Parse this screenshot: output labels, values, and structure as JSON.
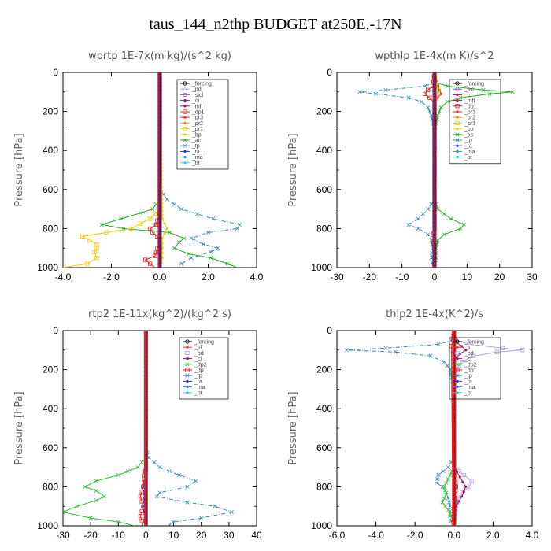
{
  "title": "taus_144_n2thp  BUDGET at250E,-17N",
  "colors": {
    "_forcing": "#000000",
    "_pd": "#b0a0e0",
    "_sicl": "#9a4fd0",
    "_cl": "#a0146e",
    "_mfl": "#b01060",
    "_dp1": "#e02020",
    "_pr3": "#ff2020",
    "_pr2": "#ff8c1a",
    "_pr1": "#f0c800",
    "_bp": "#c8e020",
    "_ac": "#20b020",
    "_tp": "#3388aa",
    "_ta": "#2030e0",
    "_ma": "#3090e0",
    "_bt": "#20d0e0",
    "_sf": "#ff3030",
    "_dp2": "#30c030"
  },
  "chart_data": [
    {
      "type": "line",
      "title": "wprtp  1E-7x(m kg)/(s^2 kg)",
      "ylabel": "Pressure [hPa]",
      "xlim": [
        -4.0,
        4.0
      ],
      "ylim": [
        0,
        1000
      ],
      "xticks": [
        "-4.0",
        "-2.0",
        "0.0",
        "2.0",
        "4.0"
      ],
      "xtick_values": [
        -4,
        -2,
        0,
        2,
        4
      ],
      "yticks": [
        "0",
        "200",
        "400",
        "600",
        "800",
        "1000"
      ],
      "legend": [
        "_forcing",
        "_pd",
        "_sicl",
        "_cl",
        "_mfl",
        "_dp1",
        "_pr3",
        "_pr2",
        "_pr1",
        "_bp",
        "_ac",
        "_tp",
        "_ta",
        "_ma",
        "_bt"
      ],
      "series": [
        {
          "name": "_tp",
          "p": [
            0,
            600,
            650,
            700,
            750,
            780,
            800,
            820,
            850,
            880,
            900,
            920,
            950,
            980,
            1000
          ],
          "x": [
            0,
            0,
            0.3,
            0.9,
            2.2,
            3.3,
            3.2,
            2.0,
            1.3,
            1.8,
            2.4,
            2.1,
            1.3,
            0.9,
            1.0
          ]
        },
        {
          "name": "_ac",
          "p": [
            0,
            650,
            700,
            720,
            750,
            780,
            800,
            820,
            850,
            870,
            900,
            930,
            950,
            980,
            1000
          ],
          "x": [
            0,
            0,
            -0.3,
            -0.8,
            -1.6,
            -2.4,
            -1.5,
            0.4,
            1.0,
            0.8,
            0.6,
            1.2,
            2.1,
            2.8,
            3.2
          ]
        },
        {
          "name": "_pr1",
          "p": [
            0,
            700,
            750,
            800,
            820,
            840,
            860,
            880,
            900,
            920,
            950,
            980,
            1000
          ],
          "x": [
            0,
            0,
            -0.4,
            -1.2,
            -2.2,
            -3.2,
            -2.9,
            -2.6,
            -2.6,
            -2.7,
            -2.6,
            -3.0,
            -4.0
          ]
        },
        {
          "name": "_dp1",
          "p": [
            0,
            700,
            740,
            780,
            800,
            820,
            840,
            860,
            880,
            900,
            940,
            960,
            980,
            1000
          ],
          "x": [
            0,
            0,
            -0.05,
            -0.15,
            -0.4,
            -0.3,
            -0.1,
            0,
            0,
            -0.1,
            -0.2,
            -0.6,
            -0.4,
            -0.2
          ]
        },
        {
          "name": "_bp",
          "p": [
            0,
            750,
            800,
            850,
            900,
            950,
            1000
          ],
          "x": [
            0,
            0.1,
            0.3,
            0.1,
            0.1,
            0.1,
            0.05
          ]
        },
        {
          "name": "_forcing",
          "p": [
            0,
            250,
            500,
            750,
            1000
          ],
          "x": [
            0,
            0,
            0,
            0,
            0
          ]
        }
      ]
    },
    {
      "type": "line",
      "title": "wpthlp  1E-4x(m K)/s^2",
      "ylabel": "Pressure [hPa]",
      "xlim": [
        -30,
        30
      ],
      "ylim": [
        0,
        1000
      ],
      "xticks": [
        "-30",
        "-20",
        "-10",
        "0",
        "10",
        "20",
        "30"
      ],
      "xtick_values": [
        -30,
        -20,
        -10,
        0,
        10,
        20,
        30
      ],
      "yticks": [
        "0",
        "200",
        "400",
        "600",
        "800",
        "1000"
      ],
      "legend": [
        "_forcing",
        "_sicl",
        "_cl",
        "_mfl",
        "_dp1",
        "_pr3",
        "_pr2",
        "_pr1",
        "_bp",
        "_ac",
        "_tp",
        "_ta",
        "_ma",
        "_bt"
      ],
      "series": [
        {
          "name": "_tp",
          "p": [
            0,
            50,
            70,
            90,
            100,
            110,
            130,
            150,
            180,
            220,
            300,
            650,
            700,
            750,
            780,
            800,
            830,
            860,
            900,
            950,
            1000
          ],
          "x": [
            0,
            0,
            -3,
            -15,
            -23,
            -18,
            -8,
            -4,
            -2,
            -1,
            0,
            0,
            -2,
            -5,
            -8,
            -5,
            -2,
            -1,
            -0.5,
            -1,
            -0.5
          ]
        },
        {
          "name": "_ac",
          "p": [
            0,
            50,
            70,
            90,
            100,
            110,
            130,
            150,
            180,
            220,
            300,
            650,
            700,
            750,
            780,
            800,
            830,
            860,
            900,
            950,
            1000
          ],
          "x": [
            0,
            0,
            4,
            15,
            24,
            17,
            8,
            4,
            2,
            1,
            0,
            0,
            1,
            5,
            9,
            8,
            3,
            1,
            0.5,
            0.5,
            0.2
          ]
        },
        {
          "name": "_dp1",
          "p": [
            0,
            70,
            90,
            110,
            130,
            160,
            800,
            850,
            900,
            1000
          ],
          "x": [
            0,
            -0.5,
            -2,
            -3,
            -1.5,
            0,
            0,
            -0.5,
            0,
            0
          ]
        },
        {
          "name": "_pr3",
          "p": [
            0,
            90,
            110,
            130,
            160
          ],
          "x": [
            0,
            1.5,
            2,
            1,
            0
          ]
        },
        {
          "name": "_pr1",
          "p": [
            0,
            70,
            90,
            110,
            150
          ],
          "x": [
            0,
            0.5,
            1,
            0.8,
            0
          ]
        },
        {
          "name": "_forcing",
          "p": [
            0,
            250,
            500,
            750,
            1000
          ],
          "x": [
            0,
            0,
            0,
            0,
            0
          ]
        }
      ]
    },
    {
      "type": "line",
      "title": "rtp2  1E-11x(kg^2)/(kg^2 s)",
      "ylabel": "Pressure [hPa]",
      "xlim": [
        -30,
        40
      ],
      "ylim": [
        0,
        1000
      ],
      "xticks": [
        "-30",
        "-20",
        "-10",
        "0",
        "10",
        "20",
        "30",
        "40"
      ],
      "xtick_values": [
        -30,
        -20,
        -10,
        0,
        10,
        20,
        30,
        40
      ],
      "yticks": [
        "0",
        "200",
        "400",
        "600",
        "800",
        "1000"
      ],
      "legend": [
        "_forcing",
        "_sf",
        "_pd",
        "_cl",
        "_dp2",
        "_dp1",
        "_tp",
        "_ta",
        "_ma",
        "_bt"
      ],
      "series": [
        {
          "name": "_tp",
          "p": [
            0,
            600,
            650,
            700,
            740,
            770,
            800,
            830,
            850,
            880,
            900,
            930,
            960,
            980,
            1000
          ],
          "x": [
            0,
            0,
            1,
            5,
            12,
            18,
            15,
            5,
            4,
            15,
            25,
            31,
            20,
            10,
            8
          ]
        },
        {
          "name": "_dp2",
          "p": [
            0,
            650,
            700,
            740,
            770,
            800,
            820,
            850,
            870,
            900,
            930,
            960,
            980,
            1000
          ],
          "x": [
            0,
            0,
            -3,
            -10,
            -18,
            -22,
            -18,
            -15,
            -18,
            -25,
            -30,
            -20,
            -10,
            -4
          ]
        },
        {
          "name": "_dp1",
          "p": [
            0,
            700,
            800,
            850,
            900,
            950,
            1000
          ],
          "x": [
            0,
            0,
            -1,
            -2,
            -1,
            -2,
            -1
          ]
        },
        {
          "name": "_ta",
          "p": [
            0,
            700,
            800,
            900,
            1000
          ],
          "x": [
            0,
            0,
            -0.5,
            -0.5,
            -0.3
          ]
        },
        {
          "name": "_forcing",
          "p": [
            0,
            250,
            500,
            750,
            1000
          ],
          "x": [
            0,
            0,
            0,
            0,
            0
          ]
        }
      ]
    },
    {
      "type": "line",
      "title": "thlp2  1E-4x(K^2)/s",
      "ylabel": "Pressure [hPa]",
      "xlim": [
        -6.0,
        4.0
      ],
      "ylim": [
        0,
        1000
      ],
      "xticks": [
        "-6.0",
        "-4.0",
        "-2.0",
        "0.0",
        "2.0",
        "4.0"
      ],
      "xtick_values": [
        -6,
        -4,
        -2,
        0,
        2,
        4
      ],
      "yticks": [
        "0",
        "200",
        "400",
        "600",
        "800",
        "1000"
      ],
      "legend": [
        "_forcing",
        "_sf",
        "_pd",
        "_cl",
        "_dp2",
        "_dp1",
        "_tp",
        "_ta",
        "_ma",
        "_bt"
      ],
      "series": [
        {
          "name": "_tp",
          "p": [
            0,
            50,
            70,
            90,
            100,
            110,
            130,
            160,
            200,
            300,
            650,
            700,
            740,
            780,
            800,
            830,
            860,
            900,
            950,
            1000
          ],
          "x": [
            0,
            -0.1,
            -0.8,
            -3.5,
            -5.5,
            -3,
            -1.2,
            -0.5,
            -0.2,
            0,
            0,
            -0.3,
            -0.8,
            -0.9,
            -0.6,
            -0.4,
            -0.3,
            -0.2,
            -0.2,
            -0.1
          ]
        },
        {
          "name": "_pd",
          "p": [
            0,
            50,
            70,
            90,
            100,
            110,
            130,
            160,
            200,
            300,
            700,
            740,
            770,
            800,
            830,
            860,
            900,
            1000
          ],
          "x": [
            0,
            0.1,
            0.8,
            2.5,
            3.5,
            2.2,
            1,
            0.4,
            0.1,
            0,
            0,
            0.5,
            0.9,
            0.8,
            0.4,
            0.2,
            0.1,
            0
          ]
        },
        {
          "name": "_cl",
          "p": [
            0,
            60,
            80,
            100,
            120,
            150,
            700,
            750,
            800,
            850,
            900,
            1000
          ],
          "x": [
            0,
            0.1,
            0.4,
            0.6,
            0.3,
            0,
            0,
            0.3,
            0.6,
            0.4,
            0.1,
            0
          ]
        },
        {
          "name": "_dp2",
          "p": [
            0,
            700,
            760,
            800,
            840,
            880,
            920,
            960,
            1000
          ],
          "x": [
            0,
            0,
            -0.3,
            -0.5,
            -0.4,
            -0.6,
            -0.3,
            -0.1,
            0
          ]
        },
        {
          "name": "_dp1",
          "p": [
            0,
            50,
            80,
            100,
            700,
            800,
            900,
            1000
          ],
          "x": [
            0,
            -0.05,
            -0.15,
            -0.05,
            0,
            0.1,
            0,
            0
          ]
        },
        {
          "name": "_forcing",
          "p": [
            0,
            250,
            500,
            750,
            1000
          ],
          "x": [
            0,
            0,
            0,
            0,
            0
          ]
        }
      ]
    }
  ]
}
